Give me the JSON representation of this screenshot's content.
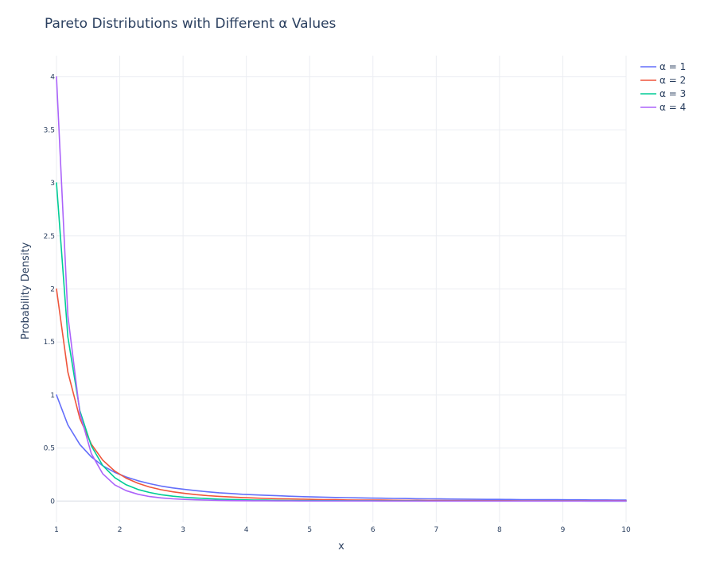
{
  "chart_data": {
    "type": "line",
    "title": "Pareto Distributions with Different α Values",
    "xlabel": "x",
    "ylabel": "Probability Density",
    "xlim": [
      1,
      10
    ],
    "ylim": [
      -0.2,
      4.2
    ],
    "x_ticks": [
      "1",
      "2",
      "3",
      "4",
      "5",
      "6",
      "7",
      "8",
      "9",
      "10"
    ],
    "x_tick_values": [
      1,
      2,
      3,
      4,
      5,
      6,
      7,
      8,
      9,
      10
    ],
    "y_ticks": [
      "0",
      "0.5",
      "1",
      "1.5",
      "2",
      "2.5",
      "3",
      "3.5",
      "4"
    ],
    "y_tick_values": [
      0,
      0.5,
      1,
      1.5,
      2,
      2.5,
      3,
      3.5,
      4
    ],
    "grid": true,
    "legend_position": "top-right",
    "x": [
      1,
      1.18,
      1.37,
      1.55,
      1.73,
      1.92,
      2.1,
      2.29,
      2.47,
      2.65,
      2.84,
      3.02,
      3.2,
      3.39,
      3.57,
      3.76,
      3.94,
      4.12,
      4.31,
      4.49,
      4.67,
      4.86,
      5.04,
      5.22,
      5.41,
      5.59,
      5.78,
      5.96,
      6.14,
      6.33,
      6.51,
      6.69,
      6.88,
      7.06,
      7.24,
      7.43,
      7.61,
      7.8,
      7.98,
      8.16,
      8.35,
      8.53,
      8.71,
      8.9,
      9.08,
      9.27,
      9.45,
      9.63,
      9.82,
      10
    ],
    "series": [
      {
        "name": "α = 1",
        "color": "#636efa",
        "values": [
          1.0,
          0.718,
          0.533,
          0.416,
          0.334,
          0.271,
          0.227,
          0.191,
          0.164,
          0.142,
          0.124,
          0.11,
          0.098,
          0.087,
          0.078,
          0.071,
          0.064,
          0.059,
          0.054,
          0.05,
          0.046,
          0.042,
          0.039,
          0.037,
          0.034,
          0.032,
          0.03,
          0.028,
          0.027,
          0.025,
          0.024,
          0.022,
          0.021,
          0.02,
          0.019,
          0.018,
          0.017,
          0.016,
          0.016,
          0.015,
          0.014,
          0.014,
          0.013,
          0.013,
          0.012,
          0.012,
          0.011,
          0.011,
          0.01,
          0.01
        ]
      },
      {
        "name": "α = 2",
        "color": "#EF553B",
        "values": [
          2.0,
          1.217,
          0.778,
          0.537,
          0.386,
          0.283,
          0.216,
          0.167,
          0.133,
          0.107,
          0.087,
          0.073,
          0.061,
          0.051,
          0.044,
          0.038,
          0.033,
          0.029,
          0.025,
          0.022,
          0.02,
          0.018,
          0.016,
          0.014,
          0.013,
          0.011,
          0.01,
          0.009,
          0.009,
          0.008,
          0.007,
          0.007,
          0.006,
          0.006,
          0.005,
          0.005,
          0.005,
          0.004,
          0.004,
          0.004,
          0.003,
          0.003,
          0.003,
          0.003,
          0.003,
          0.003,
          0.002,
          0.002,
          0.002,
          0.002
        ]
      },
      {
        "name": "α = 3",
        "color": "#00cc96",
        "values": [
          3.0,
          1.547,
          0.852,
          0.52,
          0.335,
          0.221,
          0.154,
          0.109,
          0.081,
          0.06,
          0.046,
          0.036,
          0.029,
          0.023,
          0.018,
          0.015,
          0.012,
          0.01,
          0.009,
          0.007,
          0.006,
          0.005,
          0.005,
          0.004,
          0.004,
          0.003,
          0.003,
          0.003,
          0.002,
          0.002,
          0.002,
          0.002,
          0.001,
          0.001,
          0.001,
          0.001,
          0.001,
          0.001,
          0.001,
          0.001,
          0.001,
          0.001,
          0.001,
          0.001,
          0.001,
          0.001,
          0.0,
          0.0,
          0.0,
          0.0
        ]
      },
      {
        "name": "α = 4",
        "color": "#ab63fa",
        "values": [
          4.0,
          1.749,
          0.829,
          0.447,
          0.258,
          0.153,
          0.098,
          0.064,
          0.043,
          0.03,
          0.021,
          0.016,
          0.012,
          0.009,
          0.007,
          0.005,
          0.004,
          0.003,
          0.003,
          0.002,
          0.002,
          0.001,
          0.001,
          0.001,
          0.001,
          0.001,
          0.001,
          0.001,
          0.0,
          0.0,
          0.0,
          0.0,
          0.0,
          0.0,
          0.0,
          0.0,
          0.0,
          0.0,
          0.0,
          0.0,
          0.0,
          0.0,
          0.0,
          0.0,
          0.0,
          0.0,
          0.0,
          0.0,
          0.0,
          0.0
        ]
      }
    ]
  }
}
